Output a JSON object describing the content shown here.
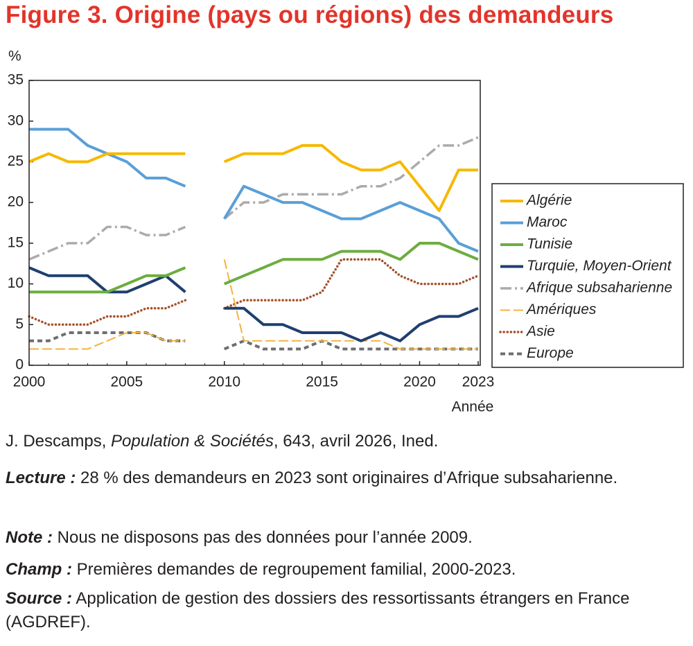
{
  "chart_data": {
    "type": "line",
    "title": "Figure 3. Origine (pays ou régions) des demandeurs",
    "y_label": "%",
    "x_label": "Année",
    "x": [
      2000,
      2001,
      2002,
      2003,
      2004,
      2005,
      2006,
      2007,
      2008,
      2009,
      2010,
      2011,
      2012,
      2013,
      2014,
      2015,
      2016,
      2017,
      2018,
      2019,
      2020,
      2021,
      2022,
      2023
    ],
    "xlim": [
      2000,
      2023
    ],
    "xticks": [
      2000,
      2005,
      2010,
      2015,
      2020,
      2023
    ],
    "ylim": [
      0,
      35
    ],
    "yticks": [
      0,
      5,
      10,
      15,
      20,
      25,
      30,
      35
    ],
    "series": [
      {
        "name": "Algérie",
        "color": "#f6b800",
        "style": "solid",
        "values": [
          25,
          26,
          25,
          25,
          26,
          26,
          26,
          26,
          26,
          null,
          25,
          26,
          26,
          26,
          27,
          27,
          25,
          24,
          24,
          25,
          22,
          19,
          24,
          24
        ]
      },
      {
        "name": "Maroc",
        "color": "#5a9fd8",
        "style": "solid",
        "values": [
          29,
          29,
          29,
          27,
          26,
          25,
          23,
          23,
          22,
          null,
          18,
          22,
          21,
          20,
          20,
          19,
          18,
          18,
          19,
          20,
          19,
          18,
          15,
          14
        ]
      },
      {
        "name": "Tunisie",
        "color": "#6cad3f",
        "style": "solid",
        "values": [
          9,
          9,
          9,
          9,
          9,
          10,
          11,
          11,
          12,
          null,
          10,
          11,
          12,
          13,
          13,
          13,
          14,
          14,
          14,
          13,
          15,
          15,
          14,
          13
        ]
      },
      {
        "name": "Turquie, Moyen-Orient",
        "color": "#1f3f70",
        "style": "solid",
        "values": [
          12,
          11,
          11,
          11,
          9,
          9,
          10,
          11,
          9,
          null,
          7,
          7,
          5,
          5,
          4,
          4,
          4,
          3,
          4,
          3,
          5,
          6,
          6,
          7
        ]
      },
      {
        "name": "Afrique subsaharienne",
        "color": "#ababab",
        "style": "dashdot",
        "values": [
          13,
          14,
          15,
          15,
          17,
          17,
          16,
          16,
          17,
          null,
          18,
          20,
          20,
          21,
          21,
          21,
          21,
          22,
          22,
          23,
          25,
          27,
          27,
          28
        ]
      },
      {
        "name": "Amériques",
        "color": "#f2b33d",
        "style": "dashed",
        "values": [
          2,
          2,
          2,
          2,
          3,
          4,
          4,
          3,
          3,
          null,
          13,
          3,
          3,
          3,
          3,
          3,
          3,
          3,
          3,
          2,
          2,
          2,
          2,
          2
        ]
      },
      {
        "name": "Asie",
        "color": "#a3502a",
        "style": "dotted",
        "values": [
          6,
          5,
          5,
          5,
          6,
          6,
          7,
          7,
          8,
          null,
          7,
          8,
          8,
          8,
          8,
          9,
          13,
          13,
          13,
          11,
          10,
          10,
          10,
          11
        ]
      },
      {
        "name": "Europe",
        "color": "#6d6e71",
        "style": "shortdash",
        "values": [
          3,
          3,
          4,
          4,
          4,
          4,
          4,
          3,
          3,
          null,
          2,
          3,
          2,
          2,
          2,
          3,
          2,
          2,
          2,
          2,
          2,
          2,
          2,
          2
        ]
      }
    ],
    "legend": "right"
  },
  "notes": {
    "credit": {
      "author": "J. Descamps, ",
      "journal": "Population & Sociétés",
      "rest": ", 643, avril 2026, Ined."
    },
    "lecture": {
      "label": "Lecture :",
      "text": " 28 % des demandeurs en 2023 sont originaires d’Afrique subsaharienne."
    },
    "note": {
      "label": "Note :",
      "text": " Nous ne disposons pas des données pour l’année 2009."
    },
    "champ": {
      "label": "Champ :",
      "text": " Premières demandes de regroupement familial, 2000-2023."
    },
    "source": {
      "label": "Source :",
      "text": " Application de gestion des dossiers des ressortissants étrangers en France (AGDREF)."
    }
  }
}
